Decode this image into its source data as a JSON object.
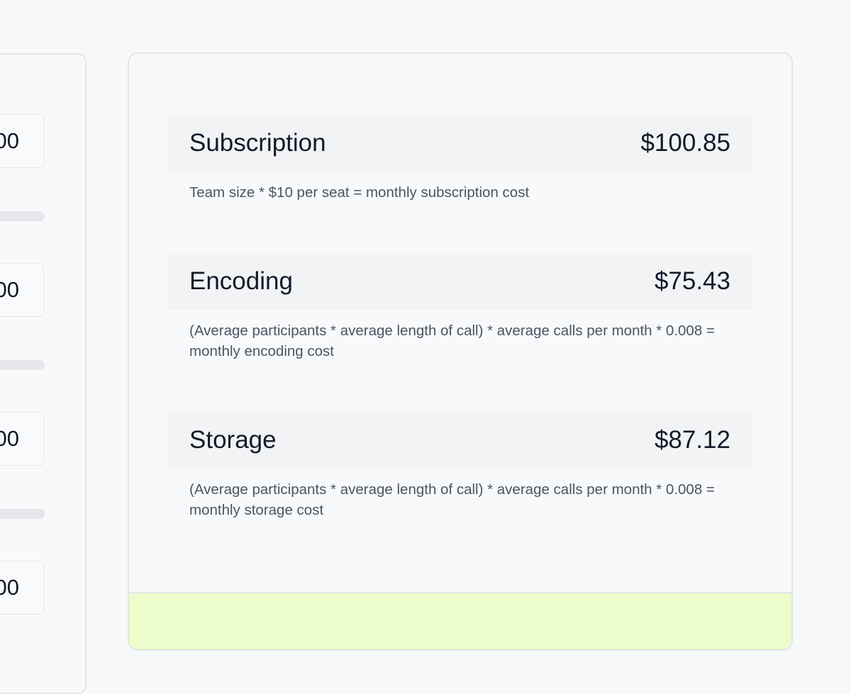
{
  "inputs_panel": {
    "inputs": [
      {
        "value": "00"
      },
      {
        "value": "00"
      },
      {
        "value": "00"
      },
      {
        "value": "00"
      }
    ]
  },
  "costs": [
    {
      "title": "Subscription",
      "amount": "$100.85",
      "description": "Team size * $10 per seat = monthly subscription cost"
    },
    {
      "title": "Encoding",
      "amount": "$75.43",
      "description": "(Average participants * average length of call) * average calls per month * 0.008 = monthly encoding cost"
    },
    {
      "title": "Storage",
      "amount": "$87.12",
      "description": "(Average participants * average length of call) * average calls per month * 0.008 = monthly storage cost"
    }
  ],
  "colors": {
    "footer": "#ecfccb",
    "row_bg": "#f2f3f5",
    "text": "#131a2a"
  }
}
